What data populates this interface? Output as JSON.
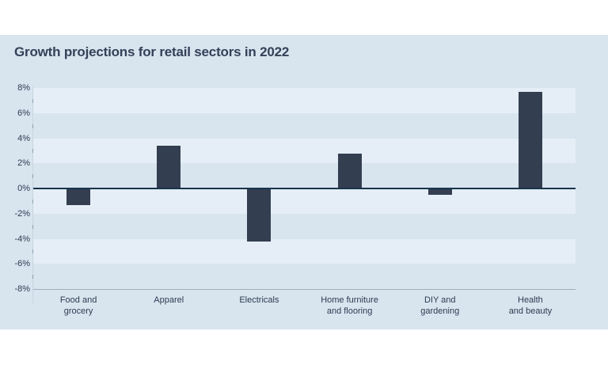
{
  "chart_data": {
    "type": "bar",
    "title": "Growth projections for retail sectors in 2022",
    "categories": [
      [
        "Food and",
        "grocery"
      ],
      [
        "Apparel"
      ],
      [
        "Electricals"
      ],
      [
        "Home furniture",
        "and flooring"
      ],
      [
        "DIY and",
        "gardening"
      ],
      [
        "Health",
        "and beauty"
      ]
    ],
    "values": [
      -1.3,
      3.4,
      -4.2,
      2.8,
      -0.5,
      7.7
    ],
    "unit": "%",
    "xlabel": "",
    "ylabel": "",
    "ylim": [
      -8,
      8
    ],
    "ytick_step": 2,
    "ytick_labels": [
      "8%",
      "6%",
      "4%",
      "2%",
      "0%",
      "-2%",
      "-4%",
      "-6%",
      "-8%"
    ],
    "grid": "alternating-horizontal-bands",
    "legend": "none",
    "data_labels": "none",
    "colors": {
      "page_bg": "#ffffff",
      "card_bg": "#d8e4ee",
      "band": "#e5eef6",
      "bar": "#333e50",
      "zero_line": "#17344c",
      "axis_line": "#9dafbe",
      "axis_line_light": "#c8d5e0",
      "tick": "#8da1b2",
      "text": "#2d3b52",
      "title": "#344158"
    }
  }
}
